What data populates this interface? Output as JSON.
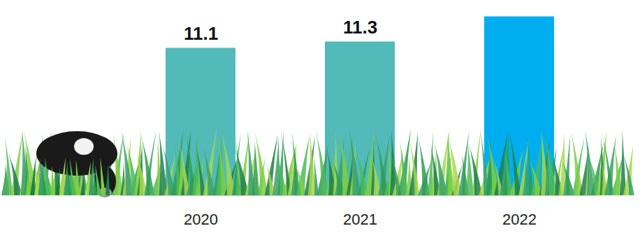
{
  "chart_data": {
    "type": "bar",
    "categories": [
      "2020",
      "2021",
      "2022"
    ],
    "values": [
      11.1,
      11.3,
      12.1
    ],
    "colors": [
      "#52bbb9",
      "#52bbb9",
      "#00aeef"
    ],
    "data_labels": true,
    "value_labels": [
      "11.1",
      "11.3",
      null
    ],
    "ylim": [
      6.4,
      12.4
    ],
    "tick_labels": "x",
    "grid": false
  }
}
